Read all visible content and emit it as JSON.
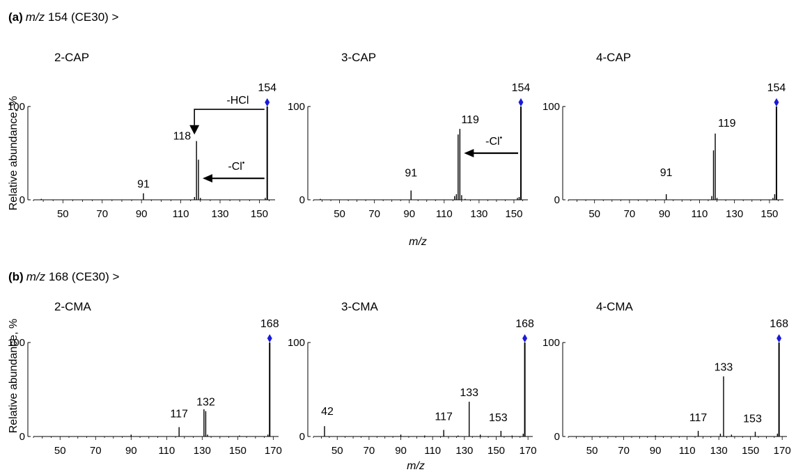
{
  "colors": {
    "axis": "#000000",
    "precursor_marker": "#1a1adb",
    "arrow": "#000000"
  },
  "rows": [
    {
      "letter": "(a)",
      "mz_prefix": "m/z",
      "rest": " 154 (CE30) >"
    },
    {
      "letter": "(b)",
      "mz_prefix": "m/z",
      "rest": "  168 (CE30) >"
    }
  ],
  "ylabel": "Relative abundance, %",
  "xlabel": "m/z",
  "chart_data": [
    {
      "type": "bar",
      "title": "2-CAP",
      "xlabel": "",
      "ylabel": "Relative abundance, %",
      "xlim": [
        35,
        158
      ],
      "ylim": [
        0,
        100
      ],
      "xticks": [
        50,
        70,
        90,
        110,
        130,
        150
      ],
      "yticks": [
        0,
        100
      ],
      "precursor": 154,
      "x": [
        39,
        91,
        117,
        118,
        119,
        120,
        153,
        154
      ],
      "values": [
        1,
        7,
        3,
        63,
        43,
        2,
        2,
        100
      ],
      "labels": [
        {
          "x": 154,
          "text": "154"
        },
        {
          "x": 118,
          "text": "118"
        },
        {
          "x": 91,
          "text": "91"
        }
      ],
      "annotations": [
        {
          "text": "-HCl",
          "from": 154,
          "to": 118
        },
        {
          "text": "-Cl",
          "sup": "•",
          "from": 154,
          "to": 119
        }
      ]
    },
    {
      "type": "bar",
      "title": "3-CAP",
      "xlabel": "",
      "ylabel": "",
      "xlim": [
        35,
        158
      ],
      "ylim": [
        0,
        100
      ],
      "xticks": [
        50,
        70,
        90,
        110,
        130,
        150
      ],
      "yticks": [
        0,
        100
      ],
      "precursor": 154,
      "x": [
        39,
        91,
        116,
        117,
        118,
        119,
        120,
        122,
        152,
        153,
        154
      ],
      "values": [
        1,
        10,
        4,
        6,
        70,
        76,
        5,
        1,
        2,
        3,
        100
      ],
      "labels": [
        {
          "x": 154,
          "text": "154"
        },
        {
          "x": 119,
          "text": "119"
        },
        {
          "x": 91,
          "text": "91"
        }
      ],
      "annotations": [
        {
          "text": "-Cl",
          "sup": "•",
          "from": 154,
          "to": 119
        }
      ]
    },
    {
      "type": "bar",
      "title": "4-CAP",
      "xlabel": "",
      "ylabel": "",
      "xlim": [
        35,
        158
      ],
      "ylim": [
        0,
        100
      ],
      "xticks": [
        50,
        70,
        90,
        110,
        130,
        150
      ],
      "yticks": [
        0,
        100
      ],
      "precursor": 154,
      "x": [
        91,
        117,
        118,
        119,
        120,
        152,
        153,
        154
      ],
      "values": [
        6,
        4,
        53,
        71,
        2,
        2,
        6,
        100
      ],
      "labels": [
        {
          "x": 154,
          "text": "154"
        },
        {
          "x": 119,
          "text": "119"
        },
        {
          "x": 91,
          "text": "91"
        }
      ],
      "annotations": []
    },
    {
      "type": "bar",
      "title": "2-CMA",
      "xlabel": "",
      "ylabel": "Relative abundance, %",
      "xlim": [
        35,
        173
      ],
      "ylim": [
        0,
        100
      ],
      "xticks": [
        50,
        70,
        90,
        110,
        130,
        150,
        170
      ],
      "yticks": [
        0,
        100
      ],
      "precursor": 168,
      "x": [
        90,
        117,
        131,
        132,
        133,
        151,
        167,
        168
      ],
      "values": [
        2,
        10,
        29,
        27,
        2,
        1,
        2,
        100
      ],
      "labels": [
        {
          "x": 168,
          "text": "168"
        },
        {
          "x": 132,
          "text": "132"
        },
        {
          "x": 117,
          "text": "117"
        }
      ],
      "annotations": []
    },
    {
      "type": "bar",
      "title": "3-CMA",
      "xlabel": "",
      "ylabel": "",
      "xlim": [
        35,
        173
      ],
      "ylim": [
        0,
        100
      ],
      "xticks": [
        50,
        70,
        90,
        110,
        130,
        150,
        170
      ],
      "yticks": [
        0,
        100
      ],
      "precursor": 168,
      "x": [
        42,
        90,
        105,
        117,
        126,
        133,
        140,
        153,
        160,
        167,
        168
      ],
      "values": [
        11,
        2,
        1,
        7,
        1,
        37,
        2,
        6,
        1,
        3,
        100
      ],
      "labels": [
        {
          "x": 168,
          "text": "168"
        },
        {
          "x": 133,
          "text": "133"
        },
        {
          "x": 117,
          "text": "117"
        },
        {
          "x": 153,
          "text": "153"
        },
        {
          "x": 42,
          "text": "42"
        }
      ],
      "annotations": []
    },
    {
      "type": "bar",
      "title": "4-CMA",
      "xlabel": "",
      "ylabel": "",
      "xlim": [
        35,
        173
      ],
      "ylim": [
        0,
        100
      ],
      "xticks": [
        50,
        70,
        90,
        110,
        130,
        150,
        170
      ],
      "yticks": [
        0,
        100
      ],
      "precursor": 168,
      "x": [
        90,
        117,
        131,
        133,
        138,
        153,
        167,
        168
      ],
      "values": [
        1,
        6,
        3,
        64,
        2,
        5,
        3,
        100
      ],
      "labels": [
        {
          "x": 168,
          "text": "168"
        },
        {
          "x": 133,
          "text": "133"
        },
        {
          "x": 117,
          "text": "117"
        },
        {
          "x": 153,
          "text": "153"
        }
      ],
      "annotations": []
    }
  ]
}
